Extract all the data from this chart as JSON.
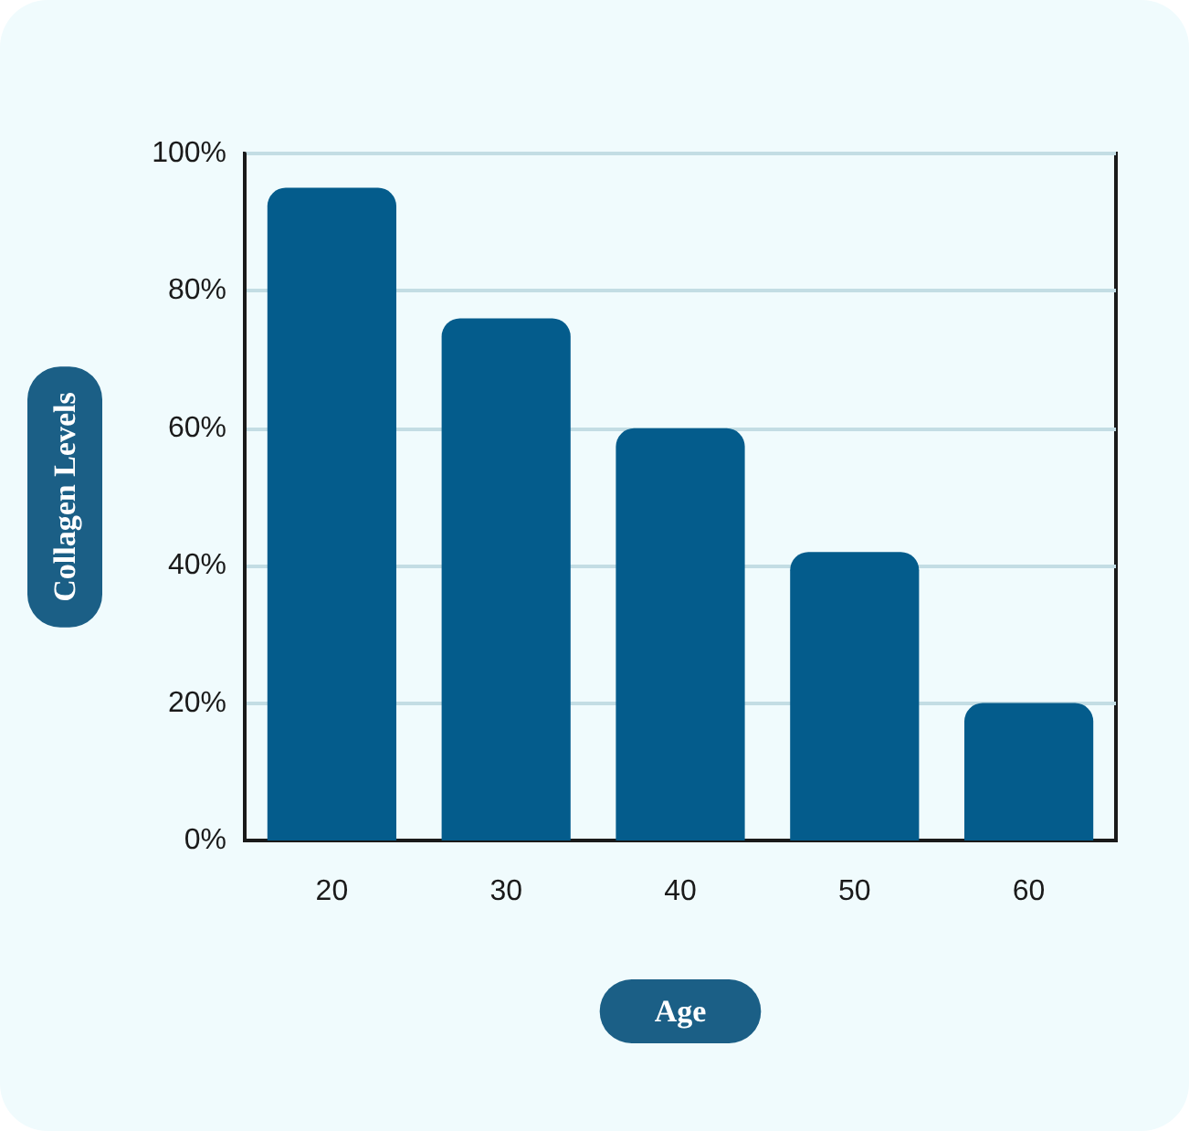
{
  "chart_data": {
    "type": "bar",
    "xlabel": "Age",
    "ylabel": "Collagen Levels",
    "categories": [
      "20",
      "30",
      "40",
      "50",
      "60"
    ],
    "values": [
      95,
      76,
      60,
      42,
      20
    ],
    "color": "#045c8c",
    "ylim": [
      0,
      100
    ],
    "yticks": [
      {
        "value": 0,
        "label": "0%"
      },
      {
        "value": 20,
        "label": "20%"
      },
      {
        "value": 40,
        "label": "40%"
      },
      {
        "value": 60,
        "label": "60%"
      },
      {
        "value": 80,
        "label": "80%"
      },
      {
        "value": 100,
        "label": "100%"
      }
    ],
    "grid": "y"
  }
}
